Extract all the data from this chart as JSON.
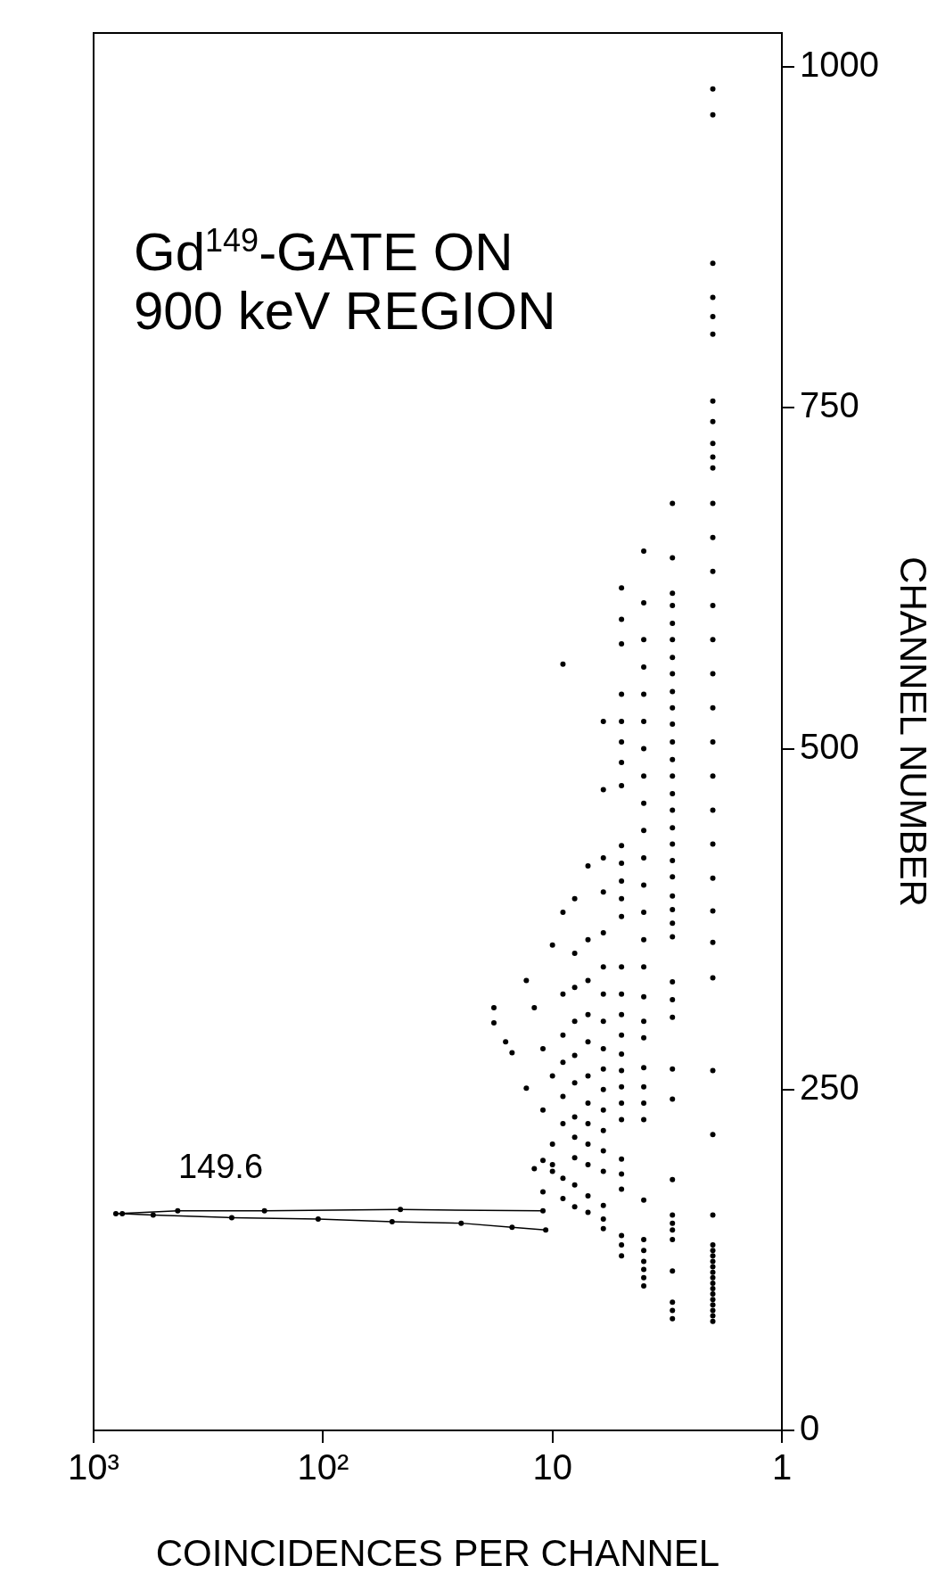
{
  "chart_data": {
    "type": "scatter",
    "title": "Gd$^{149}$-GATE ON\n900 keV REGION",
    "xlabel": "COINCIDENCES PER CHANNEL",
    "ylabel": "CHANNEL NUMBER",
    "xlim": [
      1000,
      1
    ],
    "xticks": [
      {
        "value": 1000,
        "label": "10³"
      },
      {
        "value": 100,
        "label": "10²"
      },
      10,
      1
    ],
    "ylim": [
      0,
      1025
    ],
    "yticks": [
      0,
      250,
      500,
      750,
      1000
    ],
    "log": "x",
    "marker": "circle",
    "legend": false,
    "grid": false,
    "annotations": [
      {
        "text": "149.6",
        "x": 800,
        "y": 159
      }
    ],
    "series": [
      {
        "type": "line",
        "color": "#000000",
        "values": [
          147,
          149,
          152,
          153,
          155,
          156,
          158,
          159,
          159,
          161,
          161,
          162,
          161
        ],
        "x": [
          10.7,
          15,
          25,
          50,
          105,
          250,
          550,
          750,
          800,
          430,
          180,
          46,
          11
        ]
      },
      {
        "type": "scatter",
        "color": "#000000",
        "values": [
          80,
          84,
          88,
          92,
          96,
          100,
          104,
          108,
          112,
          116,
          120,
          124,
          128,
          132,
          136,
          158,
          217,
          264,
          332,
          358,
          381,
          405,
          430,
          455,
          480,
          505,
          530,
          555,
          580,
          605,
          630,
          655,
          680,
          706,
          714,
          724,
          740,
          755,
          804,
          817,
          831,
          856,
          965,
          984,
          82,
          88,
          94,
          117,
          140,
          147,
          152,
          158,
          184,
          243,
          265,
          303,
          316,
          329,
          362,
          372,
          382,
          392,
          406,
          418,
          430,
          442,
          455,
          467,
          480,
          492,
          505,
          518,
          530,
          542,
          555,
          567,
          580,
          592,
          605,
          614,
          640,
          680,
          106,
          112,
          118,
          124,
          132,
          140,
          169,
          228,
          240,
          252,
          266,
          288,
          300,
          318,
          340,
          360,
          380,
          400,
          420,
          440,
          460,
          480,
          500,
          520,
          540,
          560,
          580,
          607,
          645,
          128,
          136,
          143,
          177,
          188,
          199,
          228,
          240,
          252,
          264,
          276,
          290,
          305,
          320,
          340,
          377,
          390,
          403,
          416,
          429,
          473,
          490,
          505,
          520,
          540,
          577,
          595,
          618,
          148,
          155,
          165,
          190,
          205,
          220,
          235,
          250,
          265,
          280,
          300,
          320,
          340,
          365,
          395,
          420,
          470,
          520,
          160,
          172,
          195,
          210,
          225,
          240,
          260,
          285,
          305,
          330,
          360,
          414,
          164,
          180,
          200,
          215,
          230,
          255,
          275,
          300,
          325,
          350,
          390,
          170,
          185,
          225,
          245,
          270,
          290,
          320,
          380,
          562,
          190,
          195,
          210,
          260,
          356,
          175,
          198,
          235,
          280,
          192,
          310,
          251,
          330,
          277,
          285,
          299,
          310
        ],
        "x": [
          2,
          2,
          2,
          2,
          2,
          2,
          2,
          2,
          2,
          2,
          2,
          2,
          2,
          2,
          2,
          2,
          2,
          2,
          2,
          2,
          2,
          2,
          2,
          2,
          2,
          2,
          2,
          2,
          2,
          2,
          2,
          2,
          2,
          2,
          2,
          2,
          2,
          2,
          2,
          2,
          2,
          2,
          2,
          2,
          3,
          3,
          3,
          3,
          3,
          3,
          3,
          3,
          3,
          3,
          3,
          3,
          3,
          3,
          3,
          3,
          3,
          3,
          3,
          3,
          3,
          3,
          3,
          3,
          3,
          3,
          3,
          3,
          3,
          3,
          3,
          3,
          3,
          3,
          3,
          3,
          3,
          3,
          4,
          4,
          4,
          4,
          4,
          4,
          4,
          4,
          4,
          4,
          4,
          4,
          4,
          4,
          4,
          4,
          4,
          4,
          4,
          4,
          4,
          4,
          4,
          4,
          4,
          4,
          4,
          4,
          4,
          5,
          5,
          5,
          5,
          5,
          5,
          5,
          5,
          5,
          5,
          5,
          5,
          5,
          5,
          5,
          5,
          5,
          5,
          5,
          5,
          5,
          5,
          5,
          5,
          5,
          5,
          5,
          5,
          6,
          6,
          6,
          6,
          6,
          6,
          6,
          6,
          6,
          6,
          6,
          6,
          6,
          6,
          6,
          6,
          6,
          6,
          7,
          7,
          7,
          7,
          7,
          7,
          7,
          7,
          7,
          7,
          7,
          7,
          8,
          8,
          8,
          8,
          8,
          8,
          8,
          8,
          8,
          8,
          8,
          9,
          9,
          9,
          9,
          9,
          9,
          9,
          9,
          9,
          10,
          10,
          10,
          10,
          10,
          11,
          11,
          11,
          11,
          12,
          12,
          13,
          13,
          15,
          16,
          18,
          18
        ]
      }
    ]
  }
}
